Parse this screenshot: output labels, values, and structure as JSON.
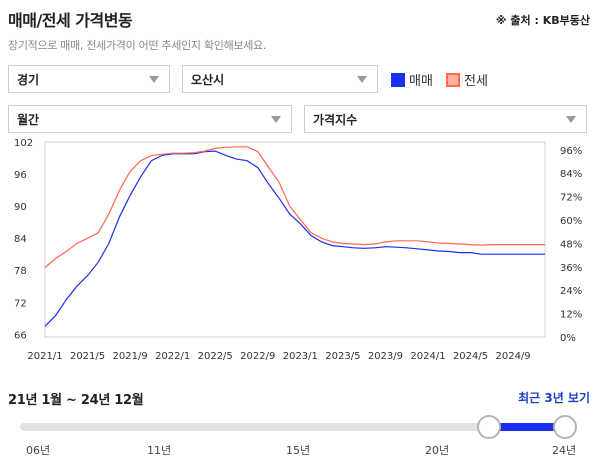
{
  "header": {
    "title": "매매/전세 가격변동",
    "source": "※ 출처 : KB부동산",
    "subtitle": "장기적으로 매매, 전세가격이 어떤 추세인지 확인해보세요."
  },
  "filters": {
    "region": "경기",
    "city": "오산시",
    "period": "월간",
    "metric": "가격지수"
  },
  "legend": [
    {
      "name": "매매",
      "color": "#1b2ff0"
    },
    {
      "name": "전세",
      "color": "#ff6a4d"
    }
  ],
  "chart_data": {
    "type": "line",
    "x": [
      "2021/1",
      "2021/2",
      "2021/3",
      "2021/4",
      "2021/5",
      "2021/6",
      "2021/7",
      "2021/8",
      "2021/9",
      "2021/10",
      "2021/11",
      "2021/12",
      "2022/1",
      "2022/2",
      "2022/3",
      "2022/4",
      "2022/5",
      "2022/6",
      "2022/7",
      "2022/8",
      "2022/9",
      "2022/10",
      "2022/11",
      "2022/12",
      "2023/1",
      "2023/2",
      "2023/3",
      "2023/4",
      "2023/5",
      "2023/6",
      "2023/7",
      "2023/8",
      "2023/9",
      "2023/10",
      "2023/11",
      "2023/12",
      "2024/1",
      "2024/2",
      "2024/3",
      "2024/4",
      "2024/5",
      "2024/6",
      "2024/7",
      "2024/8",
      "2024/9",
      "2024/10",
      "2024/11",
      "2024/12"
    ],
    "x_ticks": [
      "2021/1",
      "2021/5",
      "2021/9",
      "2022/1",
      "2022/5",
      "2022/9",
      "2023/1",
      "2023/5",
      "2023/9",
      "2024/1",
      "2024/5",
      "2024/9"
    ],
    "y_left": {
      "min": 65.5,
      "max": 102,
      "ticks": [
        66,
        72,
        78,
        84,
        90,
        96,
        102
      ]
    },
    "y_right": {
      "min": 0,
      "max": 100,
      "ticks": [
        "0%",
        "12%",
        "24%",
        "36%",
        "48%",
        "60%",
        "72%",
        "84%",
        "96%"
      ]
    },
    "grid": false,
    "series": [
      {
        "name": "매매",
        "color": "#1b2ff0",
        "values": [
          67.5,
          69.5,
          72.5,
          75,
          77,
          79.5,
          83,
          88,
          92,
          95.5,
          98.5,
          99.5,
          99.8,
          99.8,
          99.8,
          100.2,
          100.3,
          99.5,
          98.8,
          98.5,
          97.2,
          94.2,
          91.5,
          88.5,
          86.7,
          84.5,
          83.3,
          82.6,
          82.4,
          82.2,
          82.1,
          82.2,
          82.4,
          82.3,
          82.2,
          82.0,
          81.8,
          81.6,
          81.5,
          81.3,
          81.3,
          81.0,
          81.0,
          81.0,
          81.0,
          81.0,
          81.0,
          81.0
        ]
      },
      {
        "name": "전세",
        "color": "#ff6a4d",
        "values": [
          78.5,
          80.2,
          81.5,
          83,
          84,
          85,
          88.5,
          93,
          96.5,
          98.5,
          99.5,
          99.7,
          99.9,
          99.9,
          100,
          100.3,
          100.8,
          101,
          101.1,
          101.1,
          100.2,
          97.3,
          94.5,
          90,
          87.5,
          85,
          84,
          83.3,
          83.0,
          82.9,
          82.8,
          82.9,
          83.3,
          83.5,
          83.5,
          83.5,
          83.3,
          83.1,
          83.0,
          82.9,
          82.8,
          82.7,
          82.8,
          82.8,
          82.8,
          82.8,
          82.8,
          82.8
        ]
      }
    ]
  },
  "range": {
    "label": "21년 1월 ~ 24년 12월",
    "recent_button": "최근 3년 보기",
    "ticks": [
      "06년",
      "11년",
      "15년",
      "20년",
      "24년"
    ],
    "start_fraction": 0.86,
    "end_fraction": 1.0
  }
}
